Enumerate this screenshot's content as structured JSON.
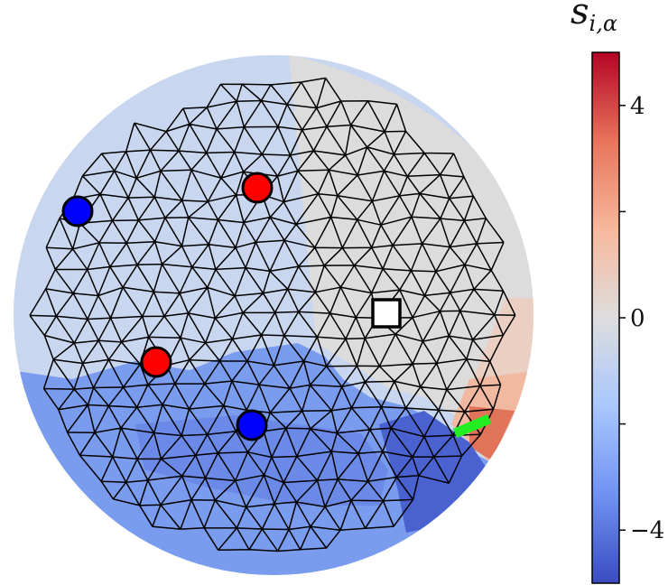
{
  "colorbar": {
    "title_main": "s",
    "title_sub": "i,α",
    "min": -5,
    "max": 5,
    "ticks": [
      {
        "value": 4,
        "label": "4"
      },
      {
        "value": 2,
        "label": ""
      },
      {
        "value": 0,
        "label": "0"
      },
      {
        "value": -2,
        "label": ""
      },
      {
        "value": -4,
        "label": "−4"
      }
    ],
    "colormap": [
      "#3b4cc0",
      "#6f92f3",
      "#aac7fd",
      "#dddddd",
      "#f7b89c",
      "#e7745b",
      "#b40426"
    ]
  },
  "markers": {
    "red": "#ff0000",
    "blue": "#0000ff",
    "square": "#ffffff",
    "segment": "#22ee22"
  }
}
